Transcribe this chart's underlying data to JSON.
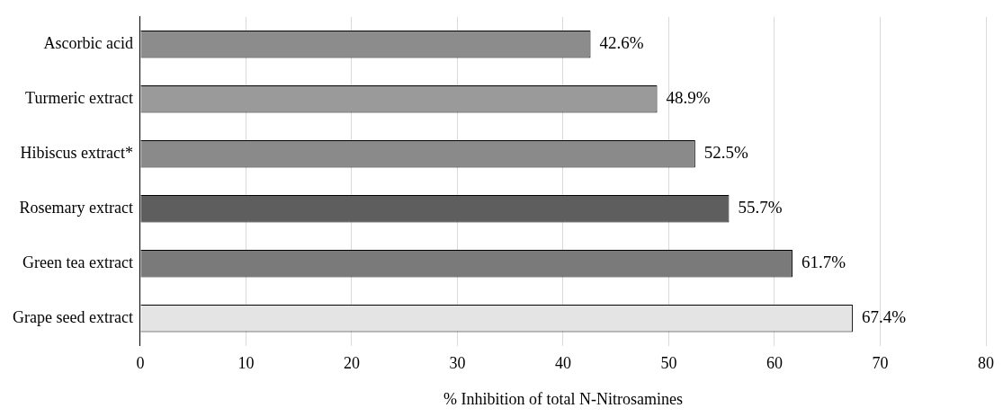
{
  "chart_data": {
    "type": "bar",
    "orientation": "horizontal",
    "categories": [
      "Ascorbic acid",
      "Turmeric extract",
      "Hibiscus extract*",
      "Rosemary extract",
      "Green tea extract",
      "Grape seed extract"
    ],
    "values": [
      42.6,
      48.9,
      52.5,
      55.7,
      61.7,
      67.4
    ],
    "value_labels": [
      "42.6%",
      "48.9%",
      "52.5%",
      "55.7%",
      "61.7%",
      "67.4%"
    ],
    "colors": [
      "#8c8c8c",
      "#9a9a9a",
      "#8a8a8a",
      "#5e5e5e",
      "#7a7a7a",
      "#e4e4e4"
    ],
    "xlim": [
      0,
      80
    ],
    "xticks": [
      0,
      10,
      20,
      30,
      40,
      50,
      60,
      70,
      80
    ],
    "xlabel": "% Inhibition of total N-Nitrosamines",
    "grid": "x",
    "legend": false
  }
}
